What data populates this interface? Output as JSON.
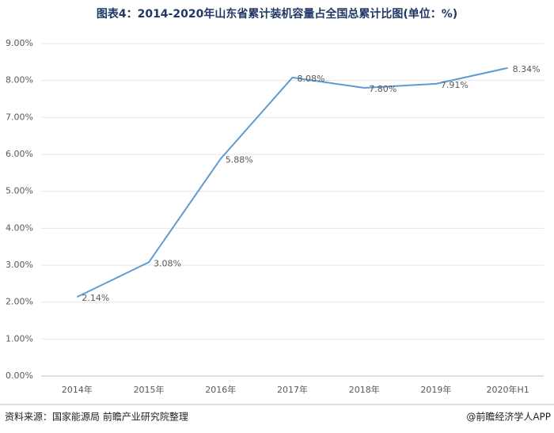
{
  "chart_data": {
    "type": "line",
    "title": "图表4：2014-2020年山东省累计装机容量占全国总累计比图(单位：%)",
    "categories": [
      "2014年",
      "2015年",
      "2016年",
      "2017年",
      "2018年",
      "2019年",
      "2020年H1"
    ],
    "series": [
      {
        "color": "#5b9bd5",
        "values": [
          2.14,
          3.08,
          5.88,
          8.08,
          7.8,
          7.91,
          8.34
        ],
        "value_labels": [
          "2.14%",
          "3.08%",
          "5.88%",
          "8.08%",
          "7.80%",
          "7.91%",
          "8.34%"
        ]
      }
    ],
    "ylim": [
      0,
      9
    ],
    "yticks": [
      {
        "value": 0,
        "label": "0.00%"
      },
      {
        "value": 1,
        "label": "1.00%"
      },
      {
        "value": 2,
        "label": "2.00%"
      },
      {
        "value": 3,
        "label": "3.00%"
      },
      {
        "value": 4,
        "label": "4.00%"
      },
      {
        "value": 5,
        "label": "5.00%"
      },
      {
        "value": 6,
        "label": "6.00%"
      },
      {
        "value": 7,
        "label": "7.00%"
      },
      {
        "value": 8,
        "label": "8.00%"
      },
      {
        "value": 9,
        "label": "9.00%"
      }
    ],
    "grid": true,
    "source": "资料来源：国家能源局 前瞻产业研究院整理",
    "credit": "@前瞻经济学人APP"
  }
}
